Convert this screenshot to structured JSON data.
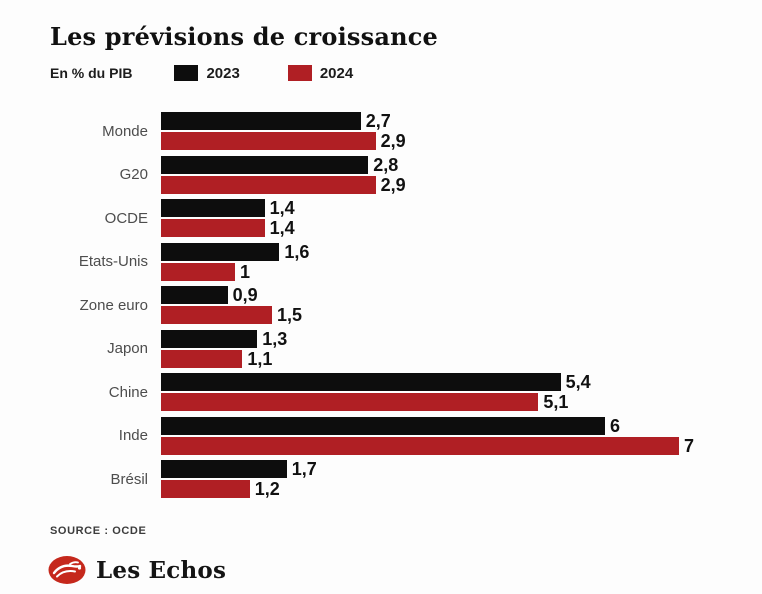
{
  "title": "Les prévisions de croissance",
  "legend": {
    "unit_label": "En % du PIB",
    "series": [
      {
        "label": "2023",
        "color": "#0d0d0d"
      },
      {
        "label": "2024",
        "color": "#b01f24"
      }
    ]
  },
  "chart_data": {
    "type": "bar",
    "orientation": "horizontal",
    "title": "Les prévisions de croissance",
    "unit": "En % du PIB",
    "categories": [
      "Monde",
      "G20",
      "OCDE",
      "Etats-Unis",
      "Zone euro",
      "Japon",
      "Chine",
      "Inde",
      "Brésil"
    ],
    "series": [
      {
        "name": "2023",
        "color": "#0d0d0d",
        "values": [
          2.7,
          2.8,
          1.4,
          1.6,
          0.9,
          1.3,
          5.4,
          6,
          1.7
        ],
        "labels": [
          "2,7",
          "2,8",
          "1,4",
          "1,6",
          "0,9",
          "1,3",
          "5,4",
          "6",
          "1,7"
        ]
      },
      {
        "name": "2024",
        "color": "#b01f24",
        "values": [
          2.9,
          2.9,
          1.4,
          1,
          1.5,
          1.1,
          5.1,
          7,
          1.2
        ],
        "labels": [
          "2,9",
          "2,9",
          "1,4",
          "1",
          "1,5",
          "1,1",
          "5,1",
          "7",
          "1,2"
        ]
      }
    ],
    "value_axis_max": 7,
    "grid": false,
    "legend_position": "top"
  },
  "source": "SOURCE : OCDE",
  "branding": {
    "name": "Les Echos",
    "logo_color": "#c5281c"
  }
}
